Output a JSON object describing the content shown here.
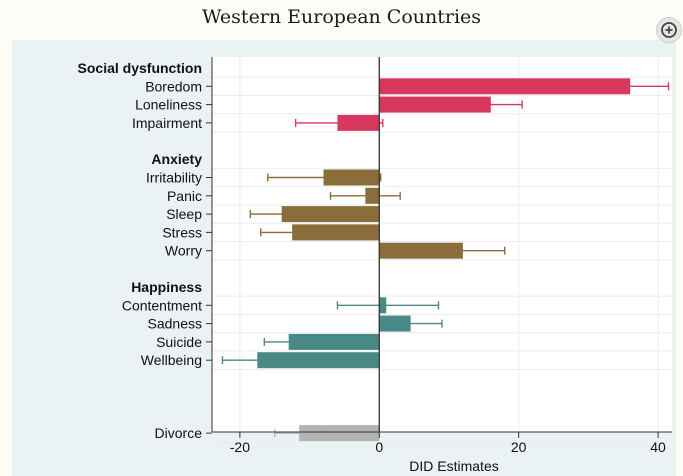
{
  "chart_data": {
    "type": "bar",
    "orientation": "horizontal",
    "title": "Western European Countries",
    "xlabel": "DID Estimates",
    "ylabel": "",
    "xlim": [
      -24,
      42
    ],
    "xticks": [
      -20,
      0,
      20,
      40
    ],
    "xtick_labels": [
      "-20",
      "0",
      "20",
      "40"
    ],
    "grid": true,
    "legend": "none",
    "groups": [
      {
        "heading": "Social dysfunction",
        "color": "#d9385e",
        "items": [
          {
            "label": "Boredom",
            "value": 36,
            "ci": [
              31,
              41.5
            ]
          },
          {
            "label": "Loneliness",
            "value": 16,
            "ci": [
              11,
              20.5
            ]
          },
          {
            "label": "Impairment",
            "value": -6,
            "ci": [
              -12,
              0.5
            ]
          }
        ]
      },
      {
        "heading": "Anxiety",
        "color": "#8b6d3c",
        "items": [
          {
            "label": "Irritability",
            "value": -8,
            "ci": [
              -16,
              0.2
            ]
          },
          {
            "label": "Panic",
            "value": -2,
            "ci": [
              -7,
              3
            ]
          },
          {
            "label": "Sleep",
            "value": -14,
            "ci": [
              -18.5,
              -9.5
            ]
          },
          {
            "label": "Stress",
            "value": -12.5,
            "ci": [
              -17,
              -8
            ]
          },
          {
            "label": "Worry",
            "value": 12,
            "ci": [
              6.5,
              18
            ]
          }
        ]
      },
      {
        "heading": "Happiness",
        "color": "#4a8a86",
        "items": [
          {
            "label": "Contentment",
            "value": 1,
            "ci": [
              -6,
              8.5
            ]
          },
          {
            "label": "Sadness",
            "value": 4.5,
            "ci": [
              0.5,
              9
            ]
          },
          {
            "label": "Suicide",
            "value": -13,
            "ci": [
              -16.5,
              -9
            ]
          },
          {
            "label": "Wellbeing",
            "value": -17.5,
            "ci": [
              -22.5,
              -12.5
            ]
          }
        ]
      },
      {
        "heading": "",
        "color": "#b3b3b3",
        "items": [
          {
            "label": "Divorce",
            "value": -11.5,
            "ci": [
              -15,
              -8
            ]
          }
        ]
      }
    ]
  },
  "ui": {
    "zoom_icon": "zoom-in-icon"
  }
}
